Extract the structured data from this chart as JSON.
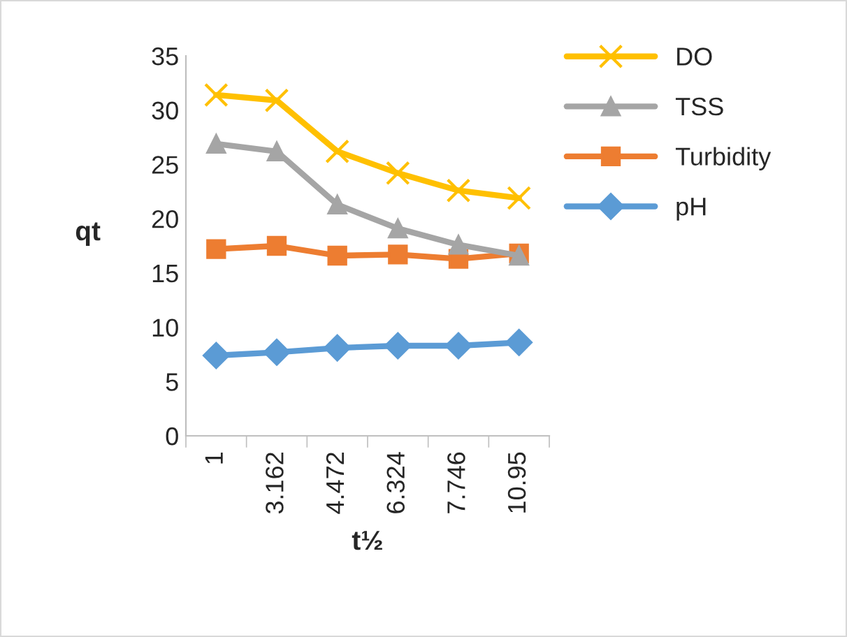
{
  "chart_data": {
    "type": "line",
    "xlabel": "t½",
    "ylabel": "qt",
    "categories": [
      "1",
      "3.162",
      "4.472",
      "6.324",
      "7.746",
      "10.95"
    ],
    "series": [
      {
        "name": "DO",
        "color": "#ffc000",
        "marker": "cross",
        "values": [
          31.4,
          30.9,
          26.2,
          24.2,
          22.6,
          21.9
        ]
      },
      {
        "name": "TSS",
        "color": "#a5a5a5",
        "marker": "triangle",
        "values": [
          26.9,
          26.2,
          21.3,
          19.1,
          17.6,
          16.6
        ]
      },
      {
        "name": "Turbidity",
        "color": "#ed7d31",
        "marker": "square",
        "values": [
          17.2,
          17.5,
          16.6,
          16.7,
          16.3,
          16.8
        ]
      },
      {
        "name": "pH",
        "color": "#5b9bd5",
        "marker": "diamond",
        "values": [
          7.4,
          7.7,
          8.1,
          8.3,
          8.3,
          8.6
        ]
      }
    ],
    "ylim": [
      0,
      35
    ],
    "yticks": [
      0,
      5,
      10,
      15,
      20,
      25,
      30,
      35
    ],
    "grid": false,
    "legend": "top right"
  }
}
